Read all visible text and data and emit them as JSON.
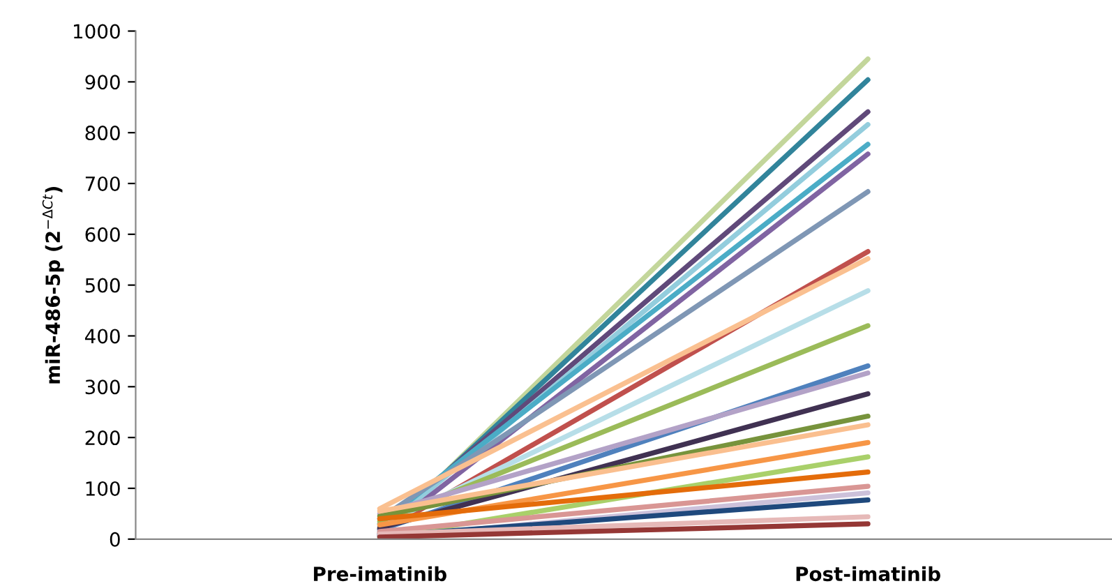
{
  "chart_data": {
    "type": "line",
    "ylabel": "miR-486-5p (2$^{−ΔCt}$)",
    "categories": [
      "Pre-imatinib",
      "Post-imatinib"
    ],
    "ylim": [
      0,
      1000
    ],
    "yticks": [
      0,
      100,
      200,
      300,
      400,
      500,
      600,
      700,
      800,
      900,
      1000
    ],
    "grid": false,
    "legend": false,
    "marker": "none",
    "line_style": "solid",
    "series": [
      {
        "color": "#c3d69b",
        "values": [
          5,
          945
        ]
      },
      {
        "color": "#31849b",
        "values": [
          10,
          904
        ]
      },
      {
        "color": "#60497a",
        "values": [
          20,
          841
        ]
      },
      {
        "color": "#93cddd",
        "values": [
          15,
          816
        ]
      },
      {
        "color": "#4bacc6",
        "values": [
          30,
          777
        ]
      },
      {
        "color": "#8064a2",
        "values": [
          8,
          758
        ]
      },
      {
        "color": "#7f97b5",
        "values": [
          40,
          684
        ]
      },
      {
        "color": "#c0504d",
        "values": [
          12,
          566
        ]
      },
      {
        "color": "#fac090",
        "values": [
          60,
          552
        ]
      },
      {
        "color": "#b7dee8",
        "values": [
          25,
          489
        ]
      },
      {
        "color": "#9bbb59",
        "values": [
          35,
          420
        ]
      },
      {
        "color": "#4f81bd",
        "values": [
          18,
          341
        ]
      },
      {
        "color": "#b3a2c7",
        "values": [
          50,
          327
        ]
      },
      {
        "color": "#403152",
        "values": [
          22,
          286
        ]
      },
      {
        "color": "#77933c",
        "values": [
          45,
          242
        ]
      },
      {
        "color": "#fabf8f",
        "values": [
          55,
          225
        ]
      },
      {
        "color": "#f79646",
        "values": [
          28,
          190
        ]
      },
      {
        "color": "#a9d06a",
        "values": [
          3,
          162
        ]
      },
      {
        "color": "#e46c0a",
        "values": [
          40,
          132
        ]
      },
      {
        "color": "#d99694",
        "values": [
          15,
          104
        ]
      },
      {
        "color": "#ccc1da",
        "values": [
          2,
          91
        ]
      },
      {
        "color": "#1f497d",
        "values": [
          6,
          77
        ]
      },
      {
        "color": "#e6b9b8",
        "values": [
          10,
          44
        ]
      },
      {
        "color": "#953735",
        "values": [
          4,
          30
        ]
      }
    ]
  }
}
